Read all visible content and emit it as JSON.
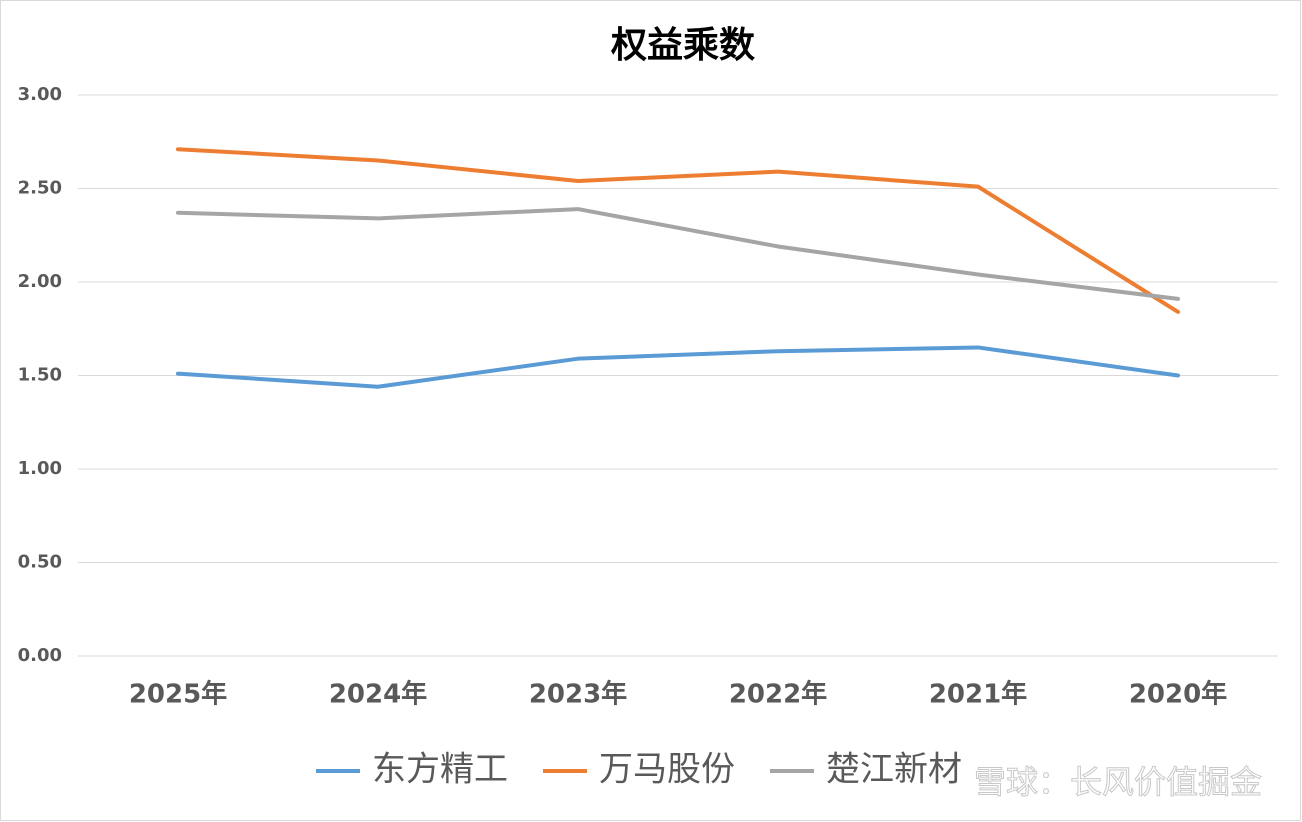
{
  "chart_data": {
    "type": "line",
    "title": "权益乘数",
    "categories": [
      "2025年",
      "2024年",
      "2023年",
      "2022年",
      "2021年",
      "2020年"
    ],
    "series": [
      {
        "name": "东方精工",
        "color": "#5b9bd5",
        "values": [
          1.51,
          1.44,
          1.59,
          1.63,
          1.65,
          1.5
        ]
      },
      {
        "name": "万马股份",
        "color": "#ed7d31",
        "values": [
          2.71,
          2.65,
          2.54,
          2.59,
          2.51,
          1.84
        ]
      },
      {
        "name": "楚江新材",
        "color": "#a5a5a5",
        "values": [
          2.37,
          2.34,
          2.39,
          2.19,
          2.04,
          1.91
        ]
      }
    ],
    "ylim": [
      0,
      3
    ],
    "yticks": [
      {
        "value": 0,
        "label": "0.00"
      },
      {
        "value": 0.5,
        "label": "0.50"
      },
      {
        "value": 1,
        "label": "1.00"
      },
      {
        "value": 1.5,
        "label": "1.50"
      },
      {
        "value": 2,
        "label": "2.00"
      },
      {
        "value": 2.5,
        "label": "2.50"
      },
      {
        "value": 3,
        "label": "3.00"
      }
    ],
    "grid": true,
    "legend": "bottom",
    "watermark": "雪球：长风价值掘金"
  }
}
